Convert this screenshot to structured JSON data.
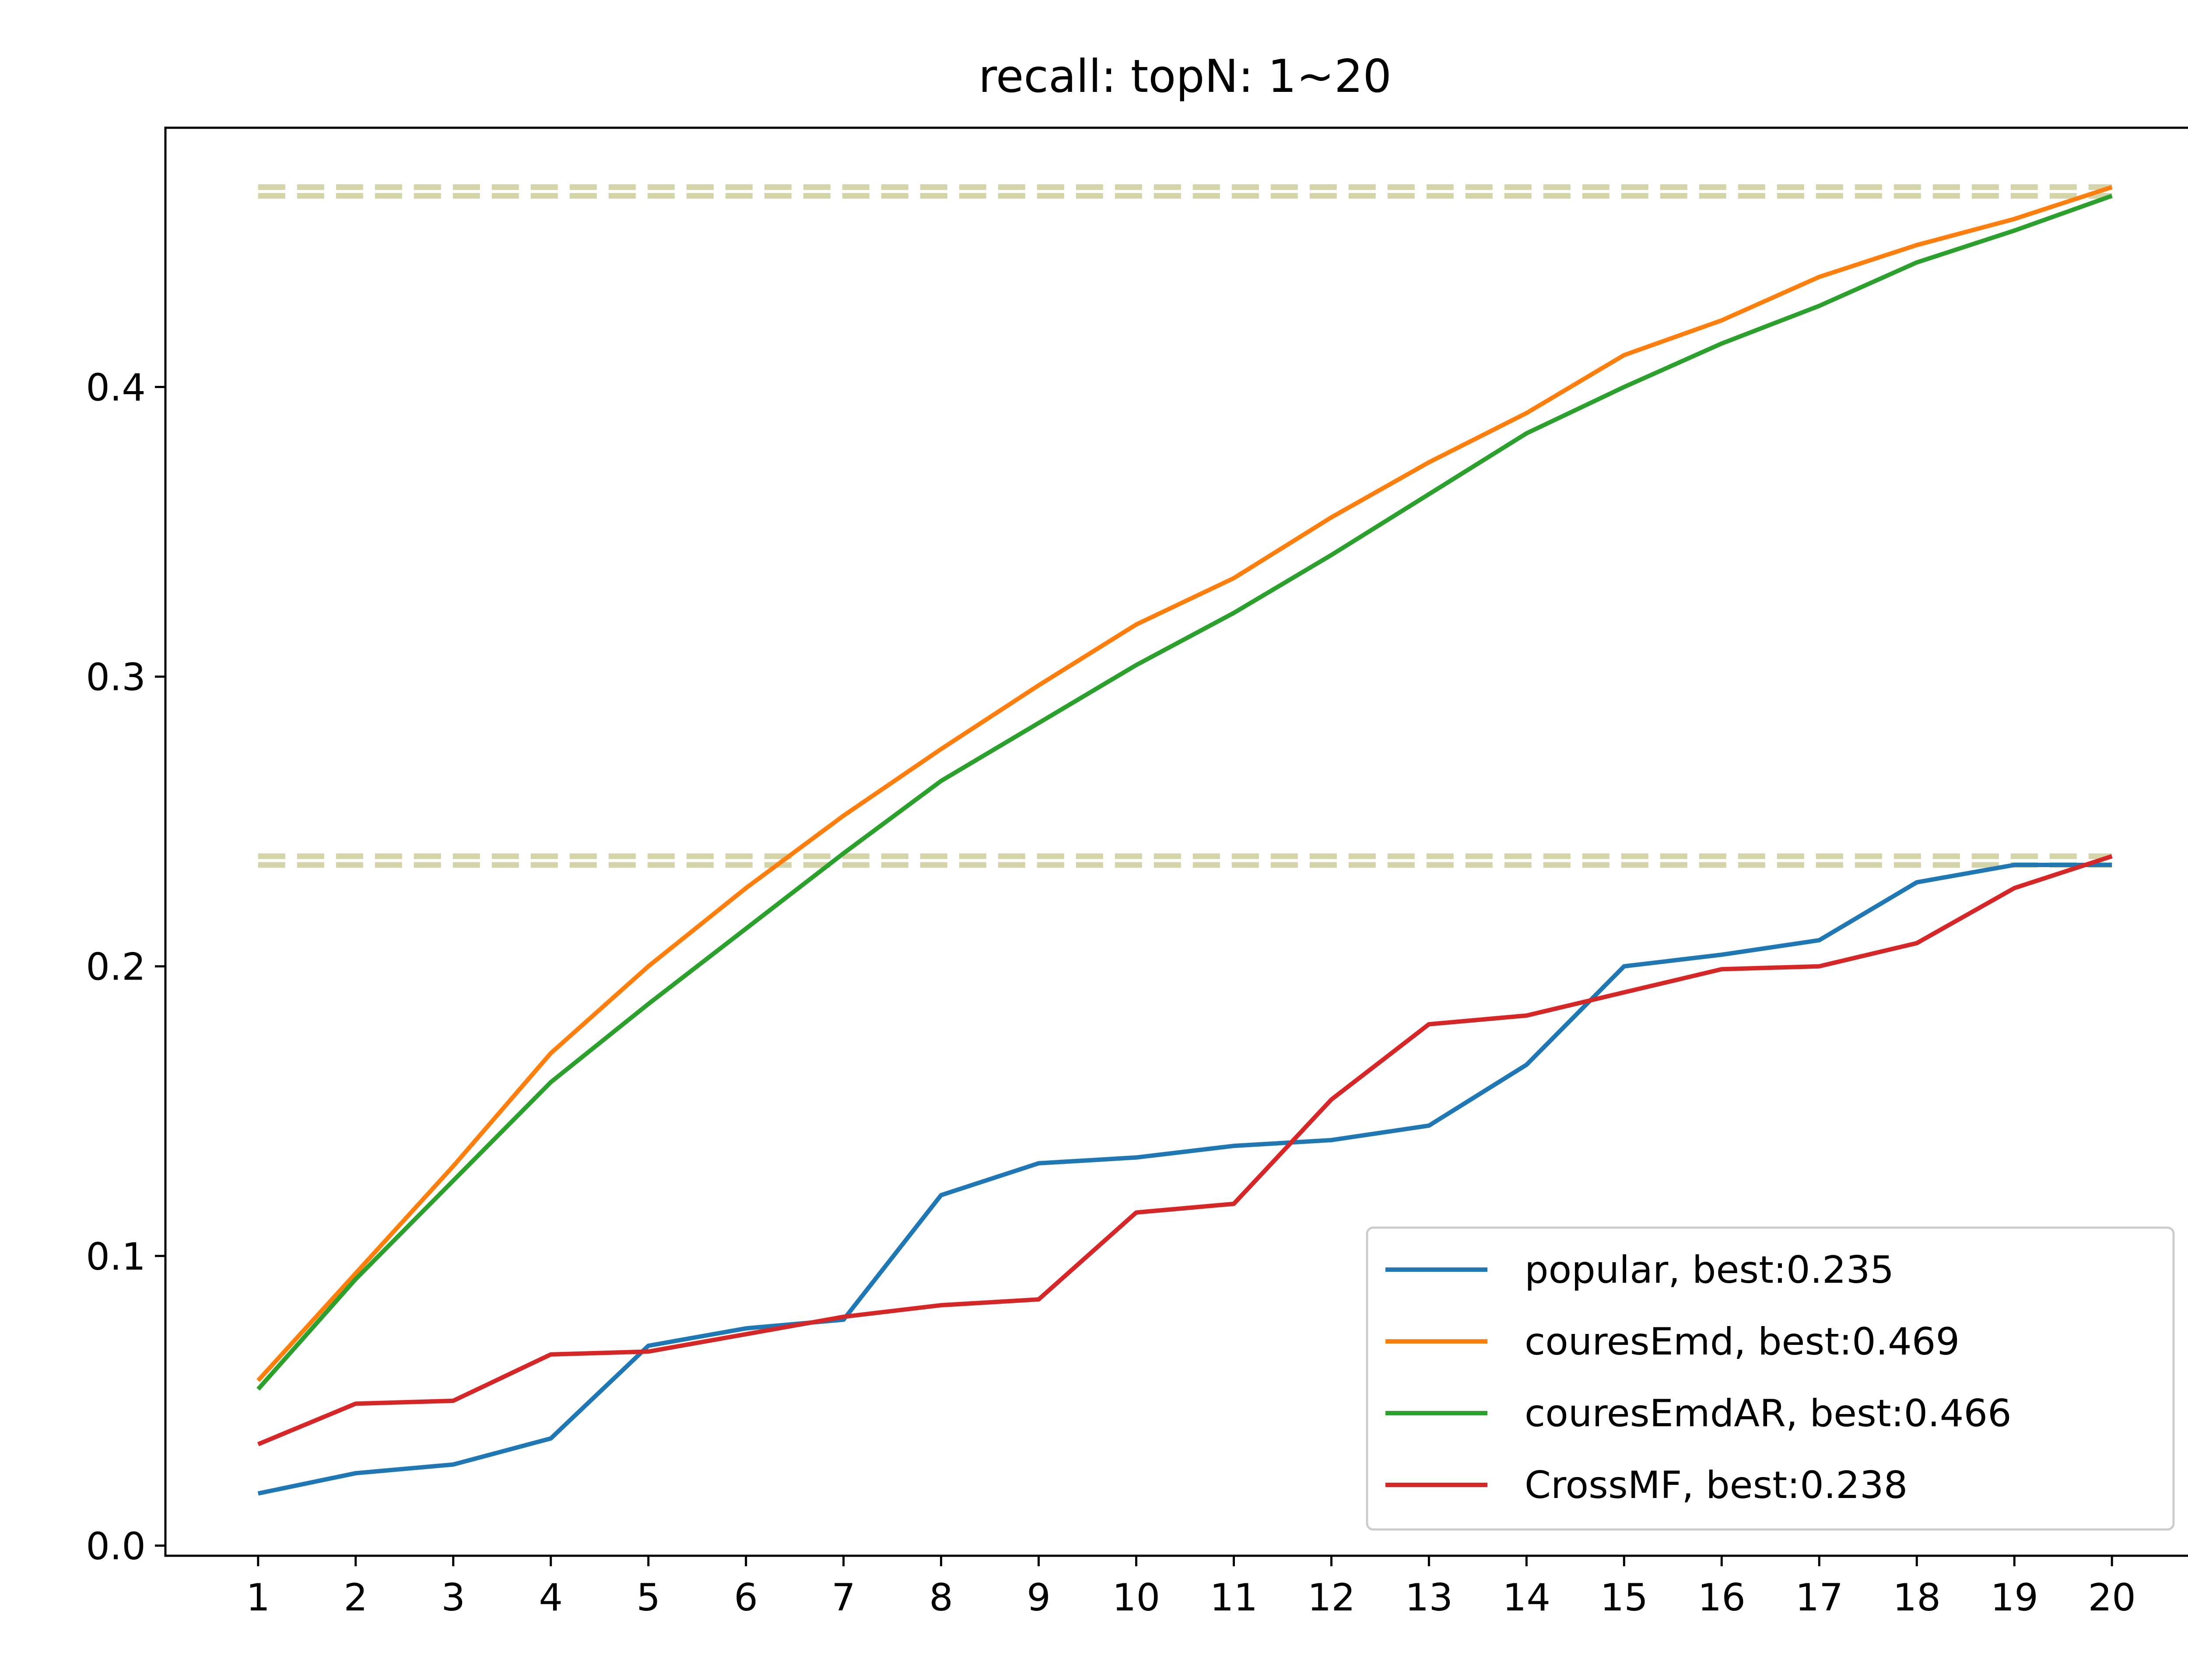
{
  "chart_data": {
    "type": "line",
    "title": "recall: topN: 1~20",
    "xlabel": "",
    "ylabel": "",
    "x": [
      1,
      2,
      3,
      4,
      5,
      6,
      7,
      8,
      9,
      10,
      11,
      12,
      13,
      14,
      15,
      16,
      17,
      18,
      19,
      20
    ],
    "xlim": [
      0.05,
      20.95
    ],
    "ylim": [
      -0.0035,
      0.4895
    ],
    "yticks": [
      0.0,
      0.1,
      0.2,
      0.3,
      0.4
    ],
    "ytick_labels": [
      "0.0",
      "0.1",
      "0.2",
      "0.3",
      "0.4"
    ],
    "grid": false,
    "legend_position": "lower right",
    "series": [
      {
        "name": "popular, best:0.235",
        "color": "#1f77b4",
        "values": [
          0.018,
          0.025,
          0.028,
          0.037,
          0.069,
          0.075,
          0.078,
          0.121,
          0.132,
          0.134,
          0.138,
          0.14,
          0.145,
          0.166,
          0.2,
          0.204,
          0.209,
          0.229,
          0.235,
          0.235
        ]
      },
      {
        "name": "couresEmd, best:0.469",
        "color": "#ff7f0e",
        "values": [
          0.057,
          0.094,
          0.131,
          0.17,
          0.2,
          0.227,
          0.252,
          0.275,
          0.297,
          0.318,
          0.334,
          0.355,
          0.374,
          0.391,
          0.411,
          0.423,
          0.438,
          0.449,
          0.458,
          0.469
        ]
      },
      {
        "name": "couresEmdAR, best:0.466",
        "color": "#2ca02c",
        "values": [
          0.054,
          0.092,
          0.126,
          0.16,
          0.187,
          0.213,
          0.239,
          0.264,
          0.284,
          0.304,
          0.322,
          0.342,
          0.363,
          0.384,
          0.4,
          0.415,
          0.428,
          0.443,
          0.454,
          0.466
        ]
      },
      {
        "name": "CrossMF, best:0.238",
        "color": "#d62728",
        "values": [
          0.035,
          0.049,
          0.05,
          0.066,
          0.067,
          0.073,
          0.079,
          0.083,
          0.085,
          0.115,
          0.118,
          0.154,
          0.18,
          0.183,
          0.191,
          0.199,
          0.2,
          0.208,
          0.227,
          0.238
        ]
      }
    ],
    "reference_lines": [
      {
        "y": 0.469,
        "color": "#d4d4a8"
      },
      {
        "y": 0.466,
        "color": "#d4d4a8"
      },
      {
        "y": 0.235,
        "color": "#d4d4a8"
      },
      {
        "y": 0.238,
        "color": "#d4d4a8"
      }
    ]
  }
}
